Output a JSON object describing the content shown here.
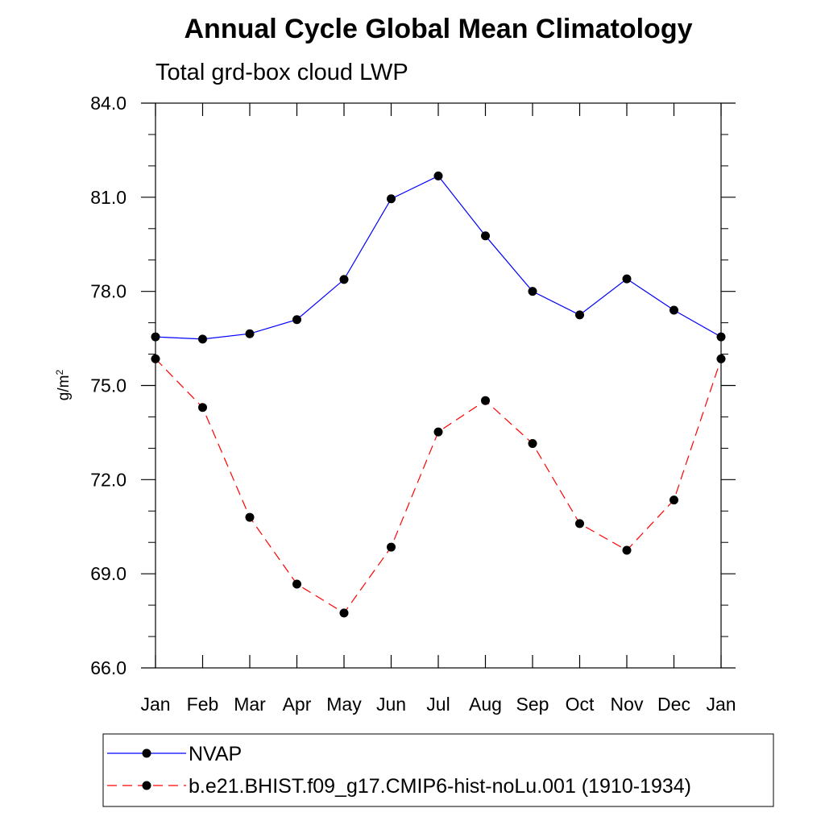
{
  "chart_data": {
    "type": "line",
    "title": "Annual Cycle Global Mean Climatology",
    "subtitle": "Total grd-box cloud LWP",
    "ylabel_base": "g/m",
    "ylabel_sup": "2",
    "xlabel": "",
    "categories": [
      "Jan",
      "Feb",
      "Mar",
      "Apr",
      "May",
      "Jun",
      "Jul",
      "Aug",
      "Sep",
      "Oct",
      "Nov",
      "Dec",
      "Jan"
    ],
    "ylim": [
      66.0,
      84.0
    ],
    "yticks": [
      66.0,
      69.0,
      72.0,
      75.0,
      78.0,
      81.0,
      84.0
    ],
    "ytick_labels": [
      "66.0",
      "69.0",
      "72.0",
      "75.0",
      "78.0",
      "81.0",
      "84.0"
    ],
    "y_minor_step": 1.0,
    "grid": false,
    "legend_position": "bottom",
    "series": [
      {
        "name": "NVAP",
        "color": "#0000ff",
        "dash": "solid",
        "values": [
          76.55,
          76.48,
          76.65,
          77.1,
          78.38,
          80.95,
          81.68,
          79.77,
          78.0,
          77.25,
          78.4,
          77.4,
          76.55
        ]
      },
      {
        "name": "b.e21.BHIST.f09_g17.CMIP6-hist-noLu.001 (1910-1934)",
        "color": "#ff0000",
        "dash": "dashed",
        "values": [
          75.85,
          74.3,
          70.8,
          68.67,
          67.75,
          69.85,
          73.52,
          74.52,
          73.15,
          70.6,
          69.75,
          71.35,
          75.85
        ]
      }
    ]
  }
}
